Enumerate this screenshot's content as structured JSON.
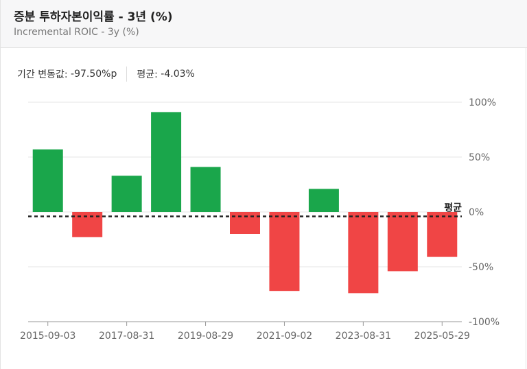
{
  "header": {
    "title": "증분 투하자본이익률 - 3년 (%)",
    "subtitle": "Incremental ROIC - 3y (%)"
  },
  "stats": {
    "change_label": "기간 변동값:",
    "change_value": "-97.50%p",
    "avg_label": "평균:",
    "avg_value": "-4.03%"
  },
  "colors": {
    "positive": "#1aa64b",
    "negative": "#f04545",
    "avg_line": "#222222"
  },
  "chart_data": {
    "type": "bar",
    "title": "증분 투하자본이익률 - 3년 (%)",
    "ylim": [
      -100,
      100
    ],
    "yticks": [
      100,
      50,
      0,
      -50,
      -100
    ],
    "ytick_labels": [
      "100%",
      "50%",
      "0%",
      "-50%",
      "-100%"
    ],
    "xtick_labels": [
      "2015-09-03",
      "2017-08-31",
      "2019-08-29",
      "2021-09-02",
      "2023-08-31",
      "2025-05-29"
    ],
    "values": [
      57,
      -23,
      33,
      91,
      41,
      -20,
      -72,
      21,
      -74,
      -54,
      -41
    ],
    "average": -4.03,
    "average_label": "평균"
  }
}
